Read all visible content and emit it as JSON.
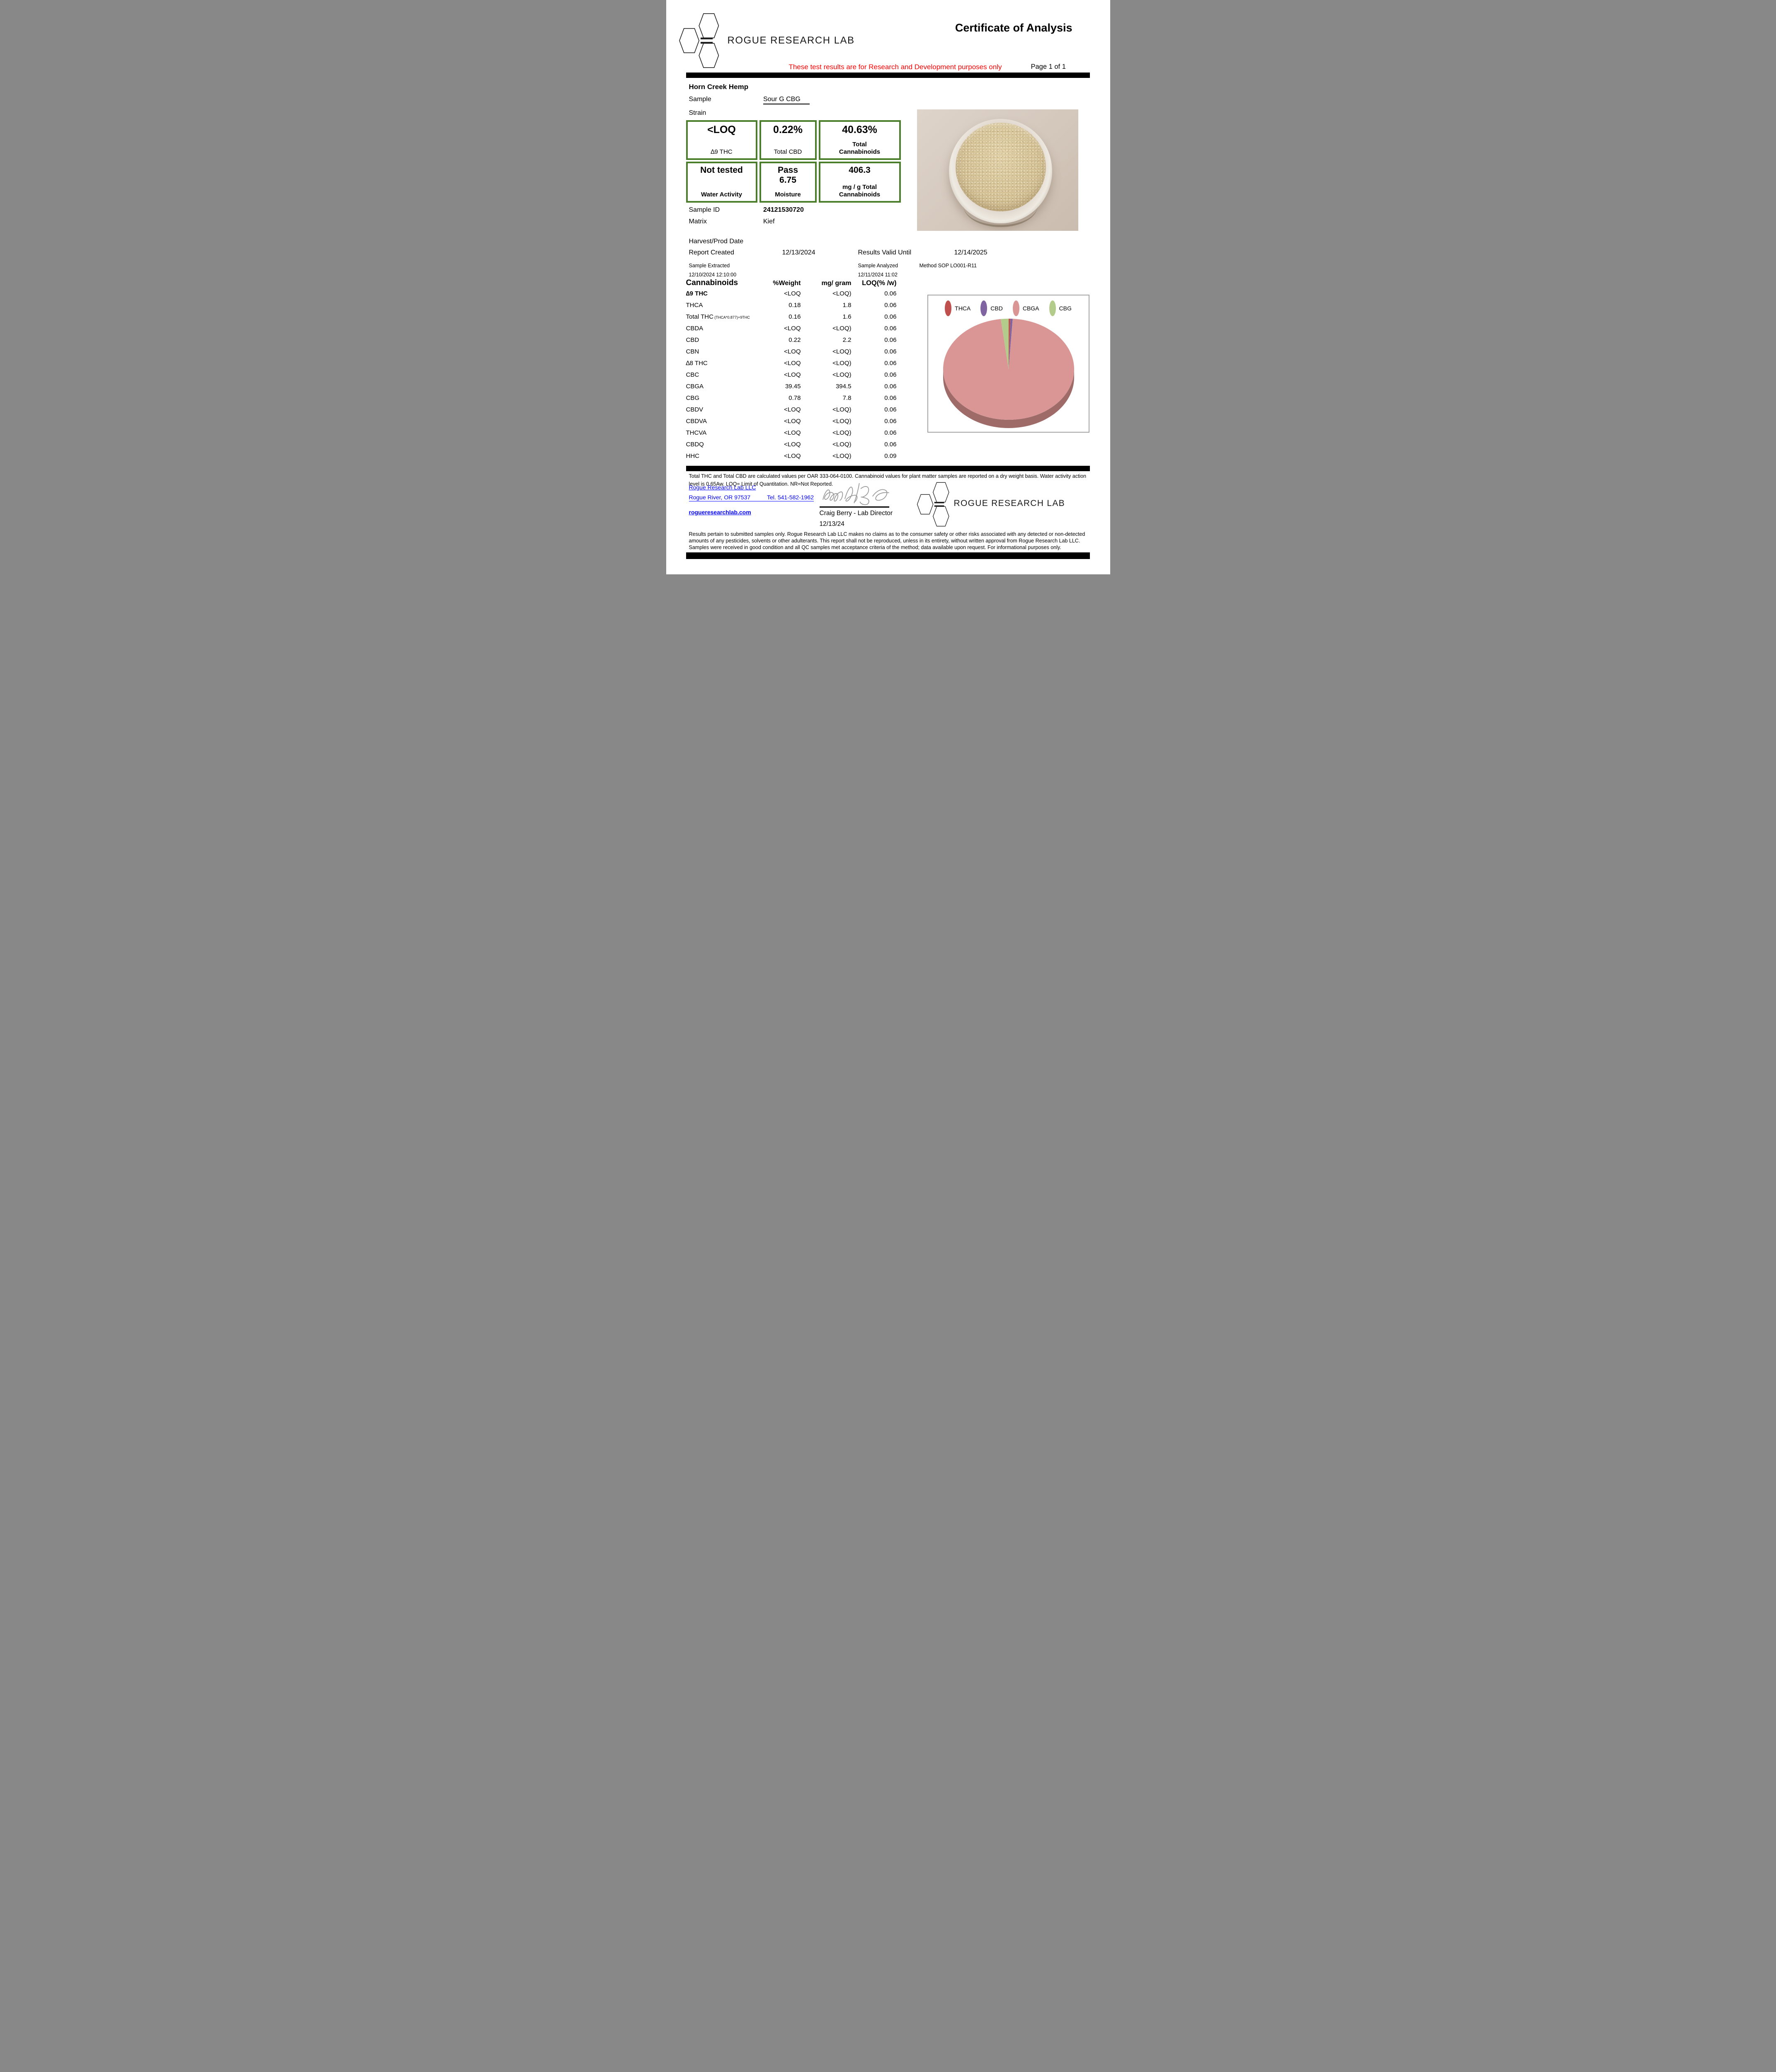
{
  "header": {
    "logo_text": "ROGUE RESEARCH LAB",
    "title": "Certificate of Analysis",
    "disclaimer": "These test results are for Research and Development purposes only",
    "page_label": "Page 1 of 1"
  },
  "sample": {
    "company": "Horn Creek Hemp",
    "sample_label": "Sample",
    "sample_value": "Sour G CBG",
    "strain_label": "Strain",
    "sample_id_label": "Sample ID",
    "sample_id": "24121530720",
    "matrix_label": "Matrix",
    "matrix": "Kief",
    "harvest_label": "Harvest/Prod Date",
    "report_created_label": "Report Created",
    "report_created": "12/13/2024",
    "results_valid_label": "Results Valid Until",
    "results_valid": "12/14/2025",
    "extracted_label": "Sample Extracted",
    "extracted": "12/10/2024 12:10:00",
    "analyzed_label": "Sample Analyzed",
    "analyzed": "12/11/2024 11:02",
    "method": "Method SOP LO001-R11"
  },
  "summary_boxes": [
    {
      "values": [
        "<LOQ"
      ],
      "value_size": "lg",
      "labels": [
        "∆9 THC"
      ],
      "labels_bold": false
    },
    {
      "values": [
        "0.22%"
      ],
      "value_size": "lg",
      "labels": [
        "Total CBD"
      ],
      "labels_bold": false
    },
    {
      "values": [
        "40.63%"
      ],
      "value_size": "lg",
      "labels": [
        "Total",
        "Cannabinoids"
      ],
      "labels_bold": true
    },
    {
      "values": [
        "Not tested"
      ],
      "value_size": "sm",
      "labels": [
        "Water Activity"
      ],
      "labels_bold": true
    },
    {
      "values": [
        "Pass",
        "6.75"
      ],
      "value_size": "sm",
      "labels": [
        "Moisture"
      ],
      "labels_bold": true
    },
    {
      "values": [
        "406.3"
      ],
      "value_size": "sm",
      "labels": [
        "mg / g Total",
        "Cannabinoids"
      ],
      "labels_bold": true
    }
  ],
  "table": {
    "title": "Cannabinoids",
    "col_weight": "%Weight",
    "col_mg": "mg/ gram",
    "col_loq": "LOQ(% /w)",
    "rows": [
      {
        "name": "∆9 THC",
        "bold": true,
        "weight": "<LOQ",
        "mg": "<LOQ)",
        "loq": "0.06"
      },
      {
        "name": "THCA",
        "bold": false,
        "weight": "0.18",
        "mg": "1.8",
        "loq": "0.06"
      },
      {
        "name": "Total THC",
        "sub": "(THCA*0.877)+9THC",
        "bold": false,
        "weight": "0.16",
        "mg": "1.6",
        "loq": "0.06"
      },
      {
        "name": "CBDA",
        "bold": false,
        "weight": "<LOQ",
        "mg": "<LOQ)",
        "loq": "0.06"
      },
      {
        "name": "CBD",
        "bold": false,
        "weight": "0.22",
        "mg": "2.2",
        "loq": "0.06"
      },
      {
        "name": "CBN",
        "bold": false,
        "weight": "<LOQ",
        "mg": "<LOQ)",
        "loq": "0.06"
      },
      {
        "name": "∆8 THC",
        "bold": false,
        "weight": "<LOQ",
        "mg": "<LOQ)",
        "loq": "0.06"
      },
      {
        "name": "CBC",
        "bold": false,
        "weight": "<LOQ",
        "mg": "<LOQ)",
        "loq": "0.06"
      },
      {
        "name": "CBGA",
        "bold": false,
        "weight": "39.45",
        "mg": "394.5",
        "loq": "0.06"
      },
      {
        "name": "CBG",
        "bold": false,
        "weight": "0.78",
        "mg": "7.8",
        "loq": "0.06"
      },
      {
        "name": "CBDV",
        "bold": false,
        "weight": "<LOQ",
        "mg": "<LOQ)",
        "loq": "0.06"
      },
      {
        "name": "CBDVA",
        "bold": false,
        "weight": "<LOQ",
        "mg": "<LOQ)",
        "loq": "0.06"
      },
      {
        "name": "THCVA",
        "bold": false,
        "weight": "<LOQ",
        "mg": "<LOQ)",
        "loq": "0.06"
      },
      {
        "name": "CBDQ",
        "bold": false,
        "weight": "<LOQ",
        "mg": "<LOQ)",
        "loq": "0.06"
      },
      {
        "name": "HHC",
        "bold": false,
        "weight": "<LOQ",
        "mg": "<LOQ)",
        "loq": "0.09"
      }
    ]
  },
  "chart_data": {
    "type": "pie",
    "style": "3d-pie",
    "legend_position": "top",
    "labels": [
      "THCA",
      "CBD",
      "CBGA",
      "CBG"
    ],
    "values": [
      0.18,
      0.22,
      39.45,
      0.78
    ],
    "unit": "%Weight",
    "colors": [
      "#c0504d",
      "#8064a2",
      "#d99694",
      "#b3cc8b"
    ],
    "side_color": "#9e6b69"
  },
  "footnote": "Total THC and Total CBD are calculated values per OAR 333-064-0100.  Cannabinoid values for plant matter samples are reported on a dry weight basis. Water activity action level is 0.65Aw. LOQ= Limit of Quantitation. NR=Not Reported.",
  "footer": {
    "lab_name": "Rogue Research Lab LLC",
    "address": "Rogue River, OR 97537",
    "tel": "Tel.  541-582-1962",
    "website": "rogueresearchlab.com",
    "signer": "Craig Berry - Lab Director",
    "sign_date": "12/13/24",
    "logo_text": "ROGUE RESEARCH LAB",
    "disclaimer": "Results pertain to submitted samples only. Rogue Research Lab LLC makes no claims as to the consumer safety or other risks associated with any detected or non-detected amounts of any pesticides, solvents or other adulterants. This report shall not be reproduced, unless in its entirety, without written approval from Rogue Research Lab LLC. Samples were received in good condition and all QC samples met acceptance criteria of the method; data available upon request. For informational purposes only."
  },
  "colors": {
    "box_border_green": "#4a7e2b",
    "disclaimer_red": "#ff0000",
    "link_blue": "#0000ff",
    "bar_black": "#000000",
    "chart_border": "#a3a3a3"
  }
}
